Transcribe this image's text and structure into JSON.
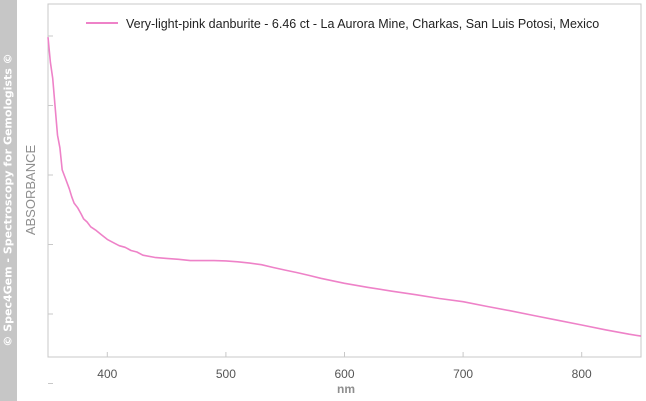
{
  "watermark": "© Spec4Gem - Spectroscopy for Gemologists ©",
  "colors": {
    "series": "#ee82c8",
    "axis": "#c8c8c8",
    "label": "#8e8e8e",
    "strip": "#c6c6c6"
  },
  "chart_data": {
    "type": "line",
    "xlabel": "nm",
    "ylabel": "ABSORBANCE",
    "xlim": [
      350,
      850
    ],
    "ylim": [
      0,
      1
    ],
    "xticks": [
      400,
      500,
      600,
      700,
      800
    ],
    "y_tick_labels": false,
    "grid": false,
    "legend_position": "top",
    "series": [
      {
        "name": "Very-light-pink danburite - 6.46 ct - La Aurora Mine, Charkas, San Luis Potosi, Mexico",
        "color": "#ee82c8",
        "x": [
          350,
          352,
          354,
          356,
          358,
          360,
          362,
          365,
          368,
          370,
          372,
          375,
          378,
          380,
          383,
          386,
          390,
          395,
          400,
          405,
          410,
          415,
          420,
          425,
          430,
          440,
          450,
          460,
          470,
          480,
          490,
          500,
          510,
          520,
          530,
          540,
          550,
          560,
          570,
          580,
          590,
          600,
          620,
          640,
          660,
          680,
          700,
          720,
          740,
          760,
          780,
          800,
          820,
          840,
          850
        ],
        "y": [
          0.99,
          0.91,
          0.86,
          0.77,
          0.68,
          0.64,
          0.57,
          0.54,
          0.51,
          0.485,
          0.465,
          0.45,
          0.43,
          0.415,
          0.405,
          0.39,
          0.38,
          0.365,
          0.35,
          0.34,
          0.33,
          0.325,
          0.315,
          0.31,
          0.3,
          0.293,
          0.29,
          0.287,
          0.283,
          0.283,
          0.283,
          0.282,
          0.279,
          0.275,
          0.27,
          0.261,
          0.253,
          0.245,
          0.236,
          0.227,
          0.219,
          0.211,
          0.198,
          0.186,
          0.175,
          0.163,
          0.153,
          0.138,
          0.124,
          0.109,
          0.094,
          0.079,
          0.064,
          0.05,
          0.044
        ]
      }
    ]
  }
}
